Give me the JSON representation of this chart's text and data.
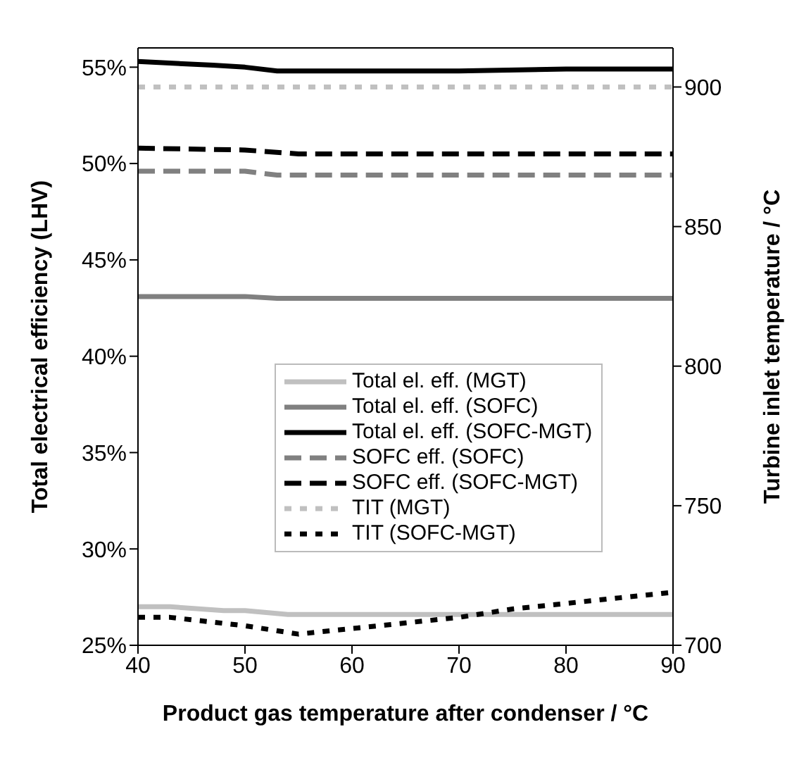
{
  "chart_data": {
    "type": "line",
    "xlabel": "Product gas temperature after condenser / °C",
    "ylabel": "Total electrical efficiency (LHV)",
    "y2label": "Turbine inlet temperature / °C",
    "xlim": [
      40,
      90
    ],
    "xticks": [
      40,
      50,
      60,
      70,
      80,
      90
    ],
    "ylim": [
      25,
      56
    ],
    "yticks": [
      {
        "value": 25,
        "label": "25%"
      },
      {
        "value": 30,
        "label": "30%"
      },
      {
        "value": 35,
        "label": "35%"
      },
      {
        "value": 40,
        "label": "40%"
      },
      {
        "value": 45,
        "label": "45%"
      },
      {
        "value": 50,
        "label": "50%"
      },
      {
        "value": 55,
        "label": "55%"
      }
    ],
    "y2lim": [
      700,
      914
    ],
    "y2ticks": [
      700,
      750,
      800,
      850,
      900
    ],
    "grid": false,
    "legend": "right",
    "marker": "none",
    "series": [
      {
        "name": "Total el. eff. (MGT)",
        "color": "#c0c0c0",
        "line_style": "solid",
        "x": [
          40,
          43,
          48,
          50,
          52,
          54,
          90
        ],
        "values": [
          27.0,
          27.0,
          26.8,
          26.8,
          26.7,
          26.6,
          26.6
        ]
      },
      {
        "name": "Total el. eff. (SOFC)",
        "color": "#808080",
        "line_style": "solid",
        "x": [
          40,
          45,
          50,
          53,
          90
        ],
        "values": [
          43.1,
          43.1,
          43.1,
          43.0,
          43.0
        ]
      },
      {
        "name": "Total el. eff. (SOFC-MGT)",
        "color": "#000000",
        "line_style": "solid",
        "x": [
          40,
          47,
          50,
          53,
          70,
          80,
          90
        ],
        "values": [
          55.3,
          55.1,
          55.0,
          54.8,
          54.8,
          54.9,
          54.9
        ]
      },
      {
        "name": "SOFC eff. (SOFC)",
        "color": "#808080",
        "line_style": "dashed",
        "x": [
          40,
          50,
          53,
          90
        ],
        "values": [
          49.6,
          49.6,
          49.4,
          49.4
        ]
      },
      {
        "name": "SOFC eff. (SOFC-MGT)",
        "color": "#000000",
        "line_style": "dashed",
        "x": [
          40,
          50,
          55,
          90
        ],
        "values": [
          50.8,
          50.7,
          50.5,
          50.5
        ]
      },
      {
        "name": "TIT (MGT)",
        "color": "#c0c0c0",
        "line_style": "dotted",
        "axis": "y2",
        "x": [
          40,
          90
        ],
        "values": [
          900,
          900
        ]
      },
      {
        "name": "TIT (SOFC-MGT)",
        "color": "#000000",
        "line_style": "dotted",
        "axis": "y2",
        "x": [
          40,
          43,
          50,
          55,
          60,
          65,
          70,
          75,
          80,
          85,
          90
        ],
        "values": [
          710,
          710,
          707,
          704,
          706,
          708,
          710,
          713,
          715,
          717,
          719
        ]
      }
    ]
  }
}
